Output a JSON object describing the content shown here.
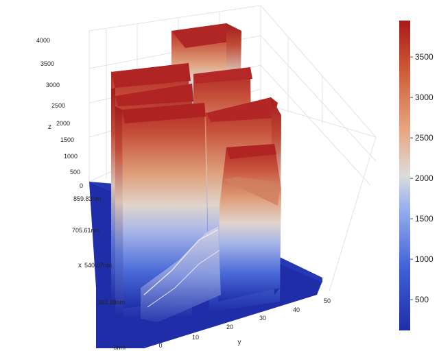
{
  "chart_data": {
    "type": "surface3d",
    "title": "",
    "axes": {
      "x": {
        "label": "x",
        "ticks": [
          "0nm",
          "363.68nm",
          "540.07nm",
          "705.61nm",
          "859.83nm"
        ]
      },
      "y": {
        "label": "y",
        "ticks": [
          "0",
          "10",
          "20",
          "30",
          "40",
          "50"
        ]
      },
      "z": {
        "label": "z",
        "ticks": [
          "0",
          "500",
          "1000",
          "1500",
          "2000",
          "2500",
          "3000",
          "3500",
          "4000"
        ],
        "range": [
          0,
          4000
        ]
      }
    },
    "colorbar": {
      "range": [
        120,
        3950
      ],
      "ticks": [
        "500",
        "1000",
        "1500",
        "2000",
        "2500",
        "3000",
        "3500"
      ],
      "tick_values": [
        500,
        1000,
        1500,
        2000,
        2500,
        3000,
        3500
      ],
      "colors": [
        "#1f2ea8",
        "#3f60d8",
        "#8fa8ee",
        "#dcdcdc",
        "#e8a57e",
        "#cc5533",
        "#a81a1a"
      ]
    },
    "grid": true,
    "features": [
      {
        "name": "tall block rear",
        "height": 3950
      },
      {
        "name": "left block",
        "height": 3500
      },
      {
        "name": "middle block",
        "height": 3400
      },
      {
        "name": "front left block",
        "height": 3200
      },
      {
        "name": "front right block",
        "height": 2400
      },
      {
        "name": "base plane",
        "height": 0
      }
    ]
  }
}
